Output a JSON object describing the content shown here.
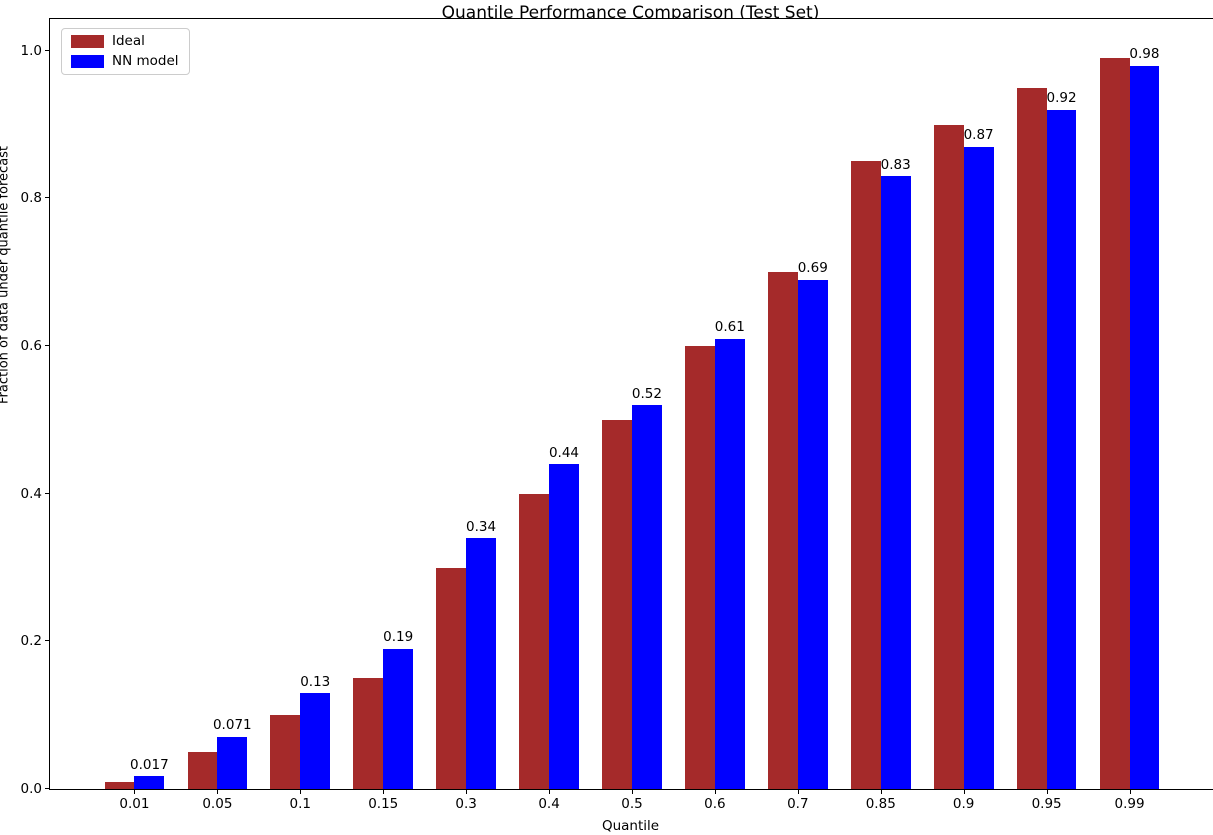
{
  "title": "Quantile Performance Comparison (Test Set)",
  "axes": {
    "xlabel": "Quantile",
    "ylabel": "Fraction of data under quantile forecast"
  },
  "legend": {
    "items": [
      {
        "label": "Ideal",
        "color": "#a52a2a"
      },
      {
        "label": "NN model",
        "color": "#0000ff"
      }
    ]
  },
  "colors": {
    "ideal_bar": "#a52a2a",
    "nn_bar": "#0000ff",
    "spine": "#000000",
    "background": "#ffffff"
  },
  "chart_data": {
    "type": "bar",
    "title": "Quantile Performance Comparison (Test Set)",
    "xlabel": "Quantile",
    "ylabel": "Fraction of data under quantile forecast",
    "categories": [
      "0.01",
      "0.05",
      "0.1",
      "0.15",
      "0.3",
      "0.4",
      "0.5",
      "0.6",
      "0.7",
      "0.85",
      "0.9",
      "0.95",
      "0.99"
    ],
    "series": [
      {
        "name": "Ideal",
        "color": "#a52a2a",
        "values": [
          0.01,
          0.05,
          0.1,
          0.15,
          0.3,
          0.4,
          0.5,
          0.6,
          0.7,
          0.85,
          0.9,
          0.95,
          0.99
        ]
      },
      {
        "name": "NN model",
        "color": "#0000ff",
        "values": [
          0.017,
          0.071,
          0.13,
          0.19,
          0.34,
          0.44,
          0.52,
          0.61,
          0.69,
          0.83,
          0.87,
          0.92,
          0.98
        ],
        "labels": [
          "0.017",
          "0.071",
          "0.13",
          "0.19",
          "0.34",
          "0.44",
          "0.52",
          "0.61",
          "0.69",
          "0.83",
          "0.87",
          "0.92",
          "0.98"
        ]
      }
    ],
    "ylim": [
      0,
      1.043
    ],
    "yticks": [
      0.0,
      0.2,
      0.4,
      0.6,
      0.8,
      1.0
    ],
    "ytick_labels": [
      "0.0",
      "0.2",
      "0.4",
      "0.6",
      "0.8",
      "1.0"
    ],
    "grid": false,
    "legend_position": "upper left",
    "bar_value_labels_on_series": "NN model"
  }
}
